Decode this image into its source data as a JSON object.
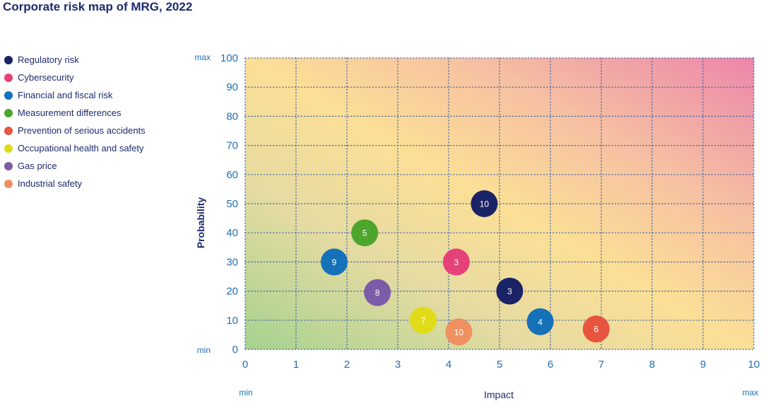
{
  "title": "Corporate risk map of MRG, 2022",
  "chart_data": {
    "type": "scatter",
    "title": "Corporate risk map of MRG, 2022",
    "xlabel": "Impact",
    "ylabel": "Probability",
    "xlim": [
      0,
      10
    ],
    "ylim": [
      0,
      100
    ],
    "xticks": [
      "0",
      "1",
      "2",
      "3",
      "4",
      "5",
      "6",
      "7",
      "8",
      "9",
      "10"
    ],
    "yticks": [
      "0",
      "10",
      "20",
      "30",
      "40",
      "50",
      "60",
      "70",
      "80",
      "90",
      "100"
    ],
    "x_min_label": "min",
    "x_max_label": "max",
    "y_min_label": "min",
    "y_max_label": "max",
    "grid": true,
    "legend_position": "left",
    "series": [
      {
        "name": "Regulatory risk",
        "color": "#1a2366",
        "points": [
          {
            "x": 4.7,
            "y": 50,
            "label": "10"
          },
          {
            "x": 5.2,
            "y": 20,
            "label": "3"
          }
        ]
      },
      {
        "name": "Cybersecurity",
        "color": "#e6427a",
        "points": [
          {
            "x": 4.15,
            "y": 30,
            "label": "3"
          }
        ]
      },
      {
        "name": "Financial and fiscal risk",
        "color": "#1571b8",
        "points": [
          {
            "x": 1.75,
            "y": 30,
            "label": "9"
          },
          {
            "x": 5.8,
            "y": 9.5,
            "label": "4"
          }
        ]
      },
      {
        "name": "Measurement differences",
        "color": "#4ea52e",
        "points": [
          {
            "x": 2.35,
            "y": 40,
            "label": "5"
          }
        ]
      },
      {
        "name": "Prevention of serious accidents",
        "color": "#e8553e",
        "points": [
          {
            "x": 6.9,
            "y": 7,
            "label": "6"
          }
        ]
      },
      {
        "name": "Occupational health and safety",
        "color": "#e1dc1a",
        "points": [
          {
            "x": 3.5,
            "y": 10,
            "label": "7"
          }
        ]
      },
      {
        "name": "Gas price",
        "color": "#7a5ca8",
        "points": [
          {
            "x": 2.6,
            "y": 19.5,
            "label": "8"
          }
        ]
      },
      {
        "name": "Industrial safety",
        "color": "#ef9060",
        "points": [
          {
            "x": 4.2,
            "y": 6,
            "label": "10"
          }
        ]
      }
    ]
  }
}
